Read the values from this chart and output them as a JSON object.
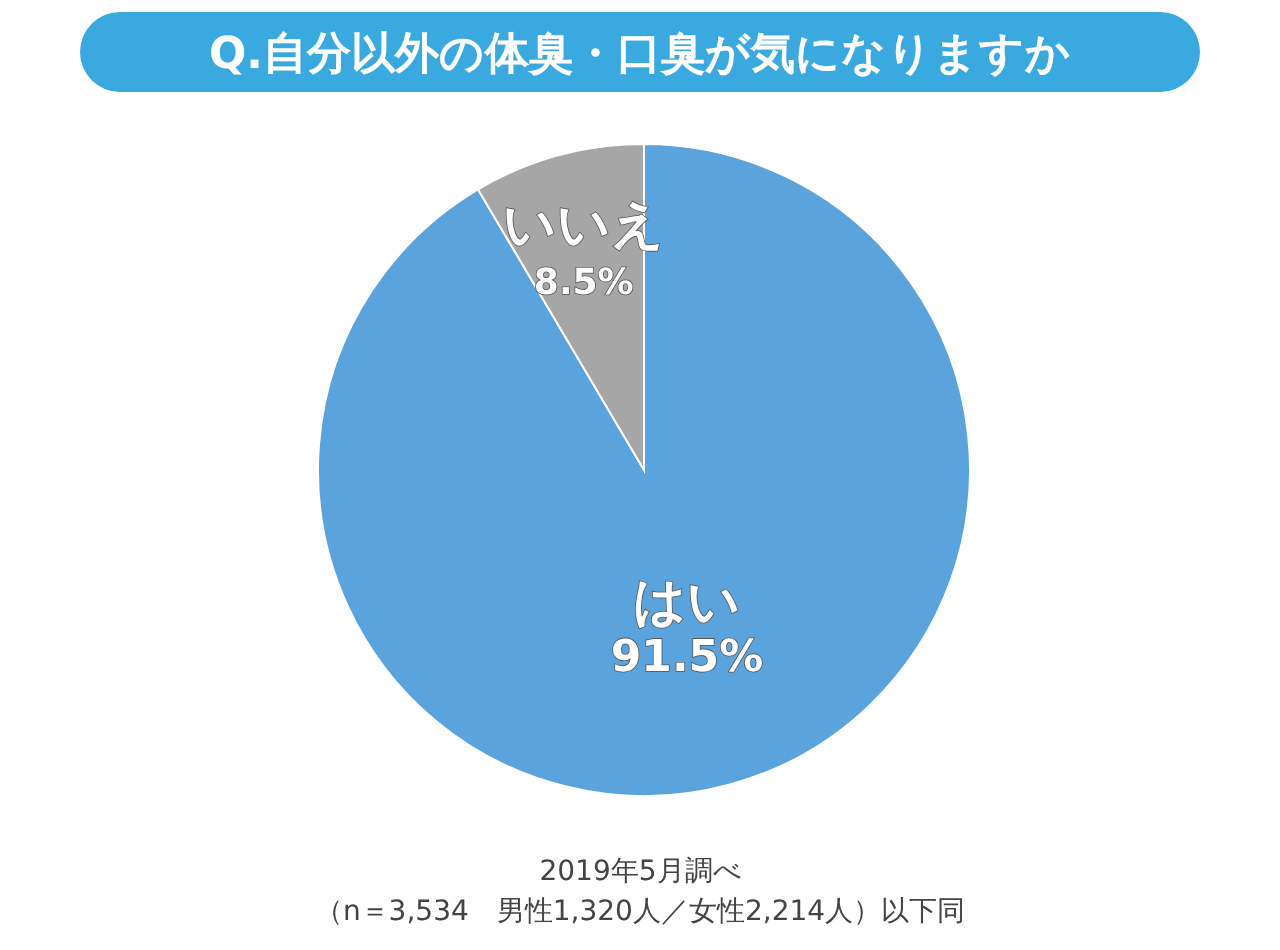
{
  "chart_data": {
    "type": "pie",
    "title": "Q.自分以外の体臭・口臭が気になりますか",
    "categories": [
      "はい",
      "いいえ"
    ],
    "values": [
      91.5,
      8.5
    ],
    "value_labels": [
      "91.5%",
      "8.5%"
    ],
    "colors": [
      "#5ba3dc",
      "#a6a6a6"
    ],
    "legend": false,
    "annotations": [
      "2019年5月調べ",
      "（n＝3,534　男性1,320人／女性2,214人）以下同"
    ]
  }
}
